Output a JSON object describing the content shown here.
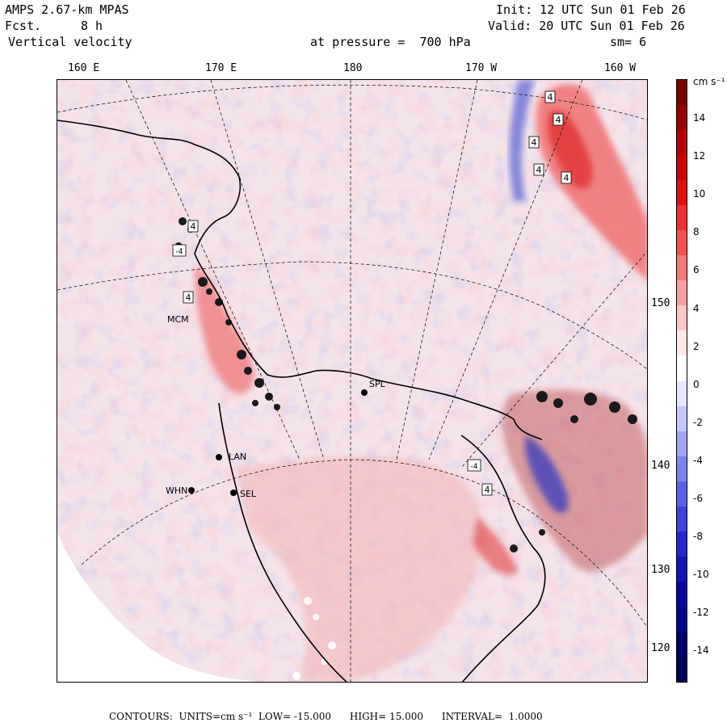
{
  "header": {
    "model": "AMPS 2.67-km MPAS",
    "fcst_label": "Fcst.",
    "fcst_value": "8 h",
    "field": "Vertical velocity",
    "init": "Init: 12 UTC Sun 01 Feb 26",
    "valid": "Valid: 20 UTC Sun 01 Feb 26",
    "pressure": "at pressure =  700 hPa",
    "smoothing": "sm= 6"
  },
  "longitudes": [
    "160 E",
    "170 E",
    "180",
    "170 W",
    "160 W"
  ],
  "latitudes": [
    "150 W",
    "140 W",
    "130 W",
    "120 W"
  ],
  "stations": [
    "MCM",
    "LAN",
    "WHN",
    "SEL",
    "SPL"
  ],
  "contour_labels": [
    "4",
    "4",
    "4",
    "4",
    "4",
    "4",
    "4",
    "-4",
    "-4",
    "4"
  ],
  "colorbar": {
    "units": "cm s⁻¹",
    "ticks": [
      "14",
      "12",
      "10",
      "8",
      "6",
      "4",
      "2",
      "0",
      "-2",
      "-4",
      "-6",
      "-8",
      "-10",
      "-12",
      "-14"
    ],
    "colors": [
      "#7a0000",
      "#980000",
      "#b40000",
      "#cc0000",
      "#e01010",
      "#ee3030",
      "#f45050",
      "#f87878",
      "#fb9e9e",
      "#fdc6c6",
      "#ffe8e8",
      "#ffffff",
      "#e6e8ff",
      "#c4c8fb",
      "#a0a6f6",
      "#7c84f0",
      "#5a62e8",
      "#3c44dc",
      "#2228cc",
      "#1016b6",
      "#04089e",
      "#000888",
      "#000070",
      "#000058"
    ]
  },
  "footer": {
    "contours_label": "CONTOURS:",
    "units": "UNITS=cm s⁻¹",
    "low": "LOW= -15.000",
    "high": "HIGH= 15.000",
    "interval": "INTERVAL=  1.0000"
  },
  "colors": {
    "positive": "#f4a6a6",
    "negative": "#9aa8ee",
    "background": "#f6e6ee"
  }
}
